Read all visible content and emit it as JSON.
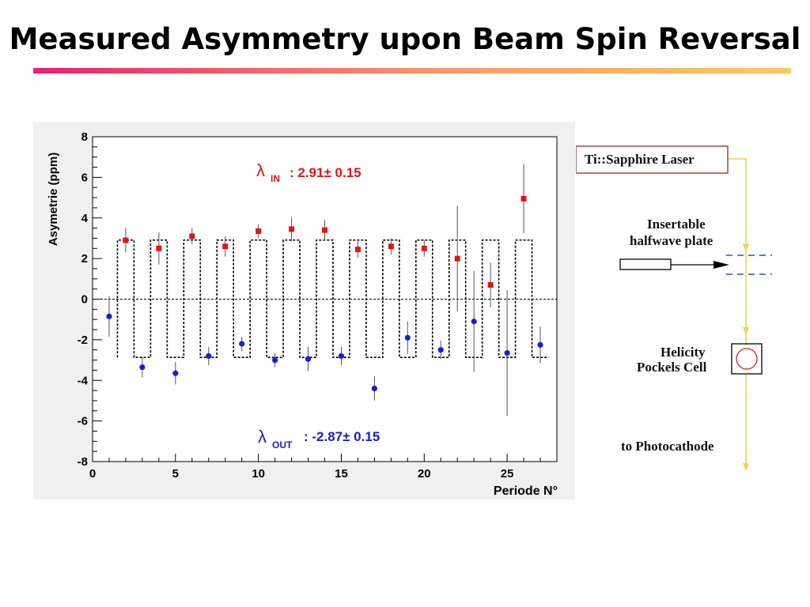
{
  "slide": {
    "title": "Measured Asymmetry upon Beam Spin Reversal"
  },
  "colors": {
    "in_series": "#e41414",
    "out_series": "#1a1add",
    "diagram_beam": "#f5d04a",
    "diagram_dash": "#2050c8",
    "laser_box_border": "#b04040"
  },
  "chart_data": {
    "type": "scatter",
    "xlabel": "Periode N°",
    "ylabel": "Asymetrie (ppm)",
    "xlim": [
      0,
      28
    ],
    "ylim": [
      -8,
      8
    ],
    "xticks": [
      "0",
      "5",
      "10",
      "15",
      "20",
      "25"
    ],
    "yticks": [
      "-8",
      "-6",
      "-4",
      "-2",
      "0",
      "2",
      "4",
      "6",
      "8"
    ],
    "grid": false,
    "zero_line": true,
    "step_levels": {
      "in": 2.91,
      "out": -2.87
    },
    "series": [
      {
        "key": "in",
        "marker": "square",
        "x": [
          2,
          4,
          6,
          8,
          10,
          12,
          14,
          16,
          18,
          20,
          22,
          24,
          26
        ],
        "y": [
          2.9,
          2.5,
          3.1,
          2.6,
          3.35,
          3.45,
          3.4,
          2.45,
          2.6,
          2.5,
          2.0,
          0.7,
          4.95
        ],
        "err": [
          0.6,
          0.8,
          0.4,
          0.5,
          0.35,
          0.6,
          0.5,
          0.4,
          0.4,
          0.4,
          2.6,
          1.1,
          1.7
        ]
      },
      {
        "key": "out",
        "marker": "circle",
        "x": [
          1,
          3,
          5,
          7,
          9,
          11,
          13,
          15,
          17,
          19,
          21,
          23,
          25,
          27
        ],
        "y": [
          -0.85,
          -3.35,
          -3.65,
          -2.8,
          -2.2,
          -3.0,
          -2.95,
          -2.8,
          -4.4,
          -1.9,
          -2.5,
          -1.1,
          -2.65,
          -2.25
        ],
        "err": [
          1.0,
          0.5,
          0.55,
          0.45,
          0.35,
          0.35,
          0.6,
          0.45,
          0.6,
          0.8,
          0.45,
          2.5,
          3.1,
          0.9
        ]
      }
    ],
    "annotations": [
      {
        "symbol": "λ",
        "sub": "IN",
        "text": ": 2.91± 0.15"
      },
      {
        "symbol": "λ",
        "sub": "OUT",
        "text": ": -2.87± 0.15"
      }
    ]
  },
  "diagram": {
    "laser_label": "Ti::Sapphire Laser",
    "plate_line1": "Insertable",
    "plate_line2": "halfwave plate",
    "cell_line1": "Helicity",
    "cell_line2": "Pockels Cell",
    "target_label": "to Photocathode"
  }
}
